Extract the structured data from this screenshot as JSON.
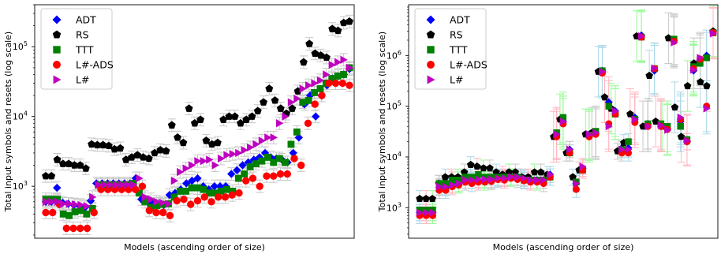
{
  "colors": {
    "ADT": "#0000ff",
    "RS": "#000000",
    "TTT": "#008000",
    "L#-ADS": "#ff0000",
    "L#": "#bf00bf",
    "errorbar_left": "#c8c8c8",
    "errorbar_right": [
      "#add8e6",
      "#ffb6c1",
      "#98fb98",
      "#c8c8c8"
    ]
  },
  "chart_data": [
    {
      "type": "scatter",
      "title": "",
      "xlabel": "Models (ascending order of size)",
      "ylabel": "Total input symbols and resets (log scale)",
      "yscale": "log",
      "ylim": [
        180,
        400000
      ],
      "yticks": [
        {
          "value": 1000,
          "base": "10",
          "exp": "3"
        },
        {
          "value": 10000,
          "base": "10",
          "exp": "4"
        },
        {
          "value": 100000,
          "base": "10",
          "exp": "5"
        }
      ],
      "grid": false,
      "legend": {
        "placement": "upper-left",
        "entries": [
          "ADT",
          "RS",
          "TTT",
          "L#-ADS",
          "L#"
        ]
      },
      "n_models": 76,
      "series": [
        {
          "name": "ADT",
          "marker": "diamond",
          "values": [
            600,
            600,
            950,
            580,
            560,
            540,
            520,
            500,
            620,
            1100,
            1100,
            1100,
            1100,
            1100,
            1100,
            1100,
            1300,
            650,
            600,
            560,
            560,
            540,
            750,
            800,
            900,
            1100,
            1200,
            1300,
            1000,
            900,
            1000,
            1000,
            1000,
            1500,
            1700,
            2000,
            2200,
            2400,
            2600,
            3000,
            2600,
            2500,
            2400,
            2200,
            3000,
            5000,
            15000,
            20000,
            10000,
            20000,
            28000,
            35000,
            38000,
            40000,
            48000
          ]
        },
        {
          "name": "RS",
          "marker": "pentagon",
          "values": [
            1400,
            1400,
            2400,
            2100,
            2100,
            2000,
            2000,
            1800,
            4000,
            3900,
            3900,
            3800,
            3400,
            3500,
            2400,
            2600,
            2800,
            2600,
            2500,
            3000,
            3300,
            3200,
            7500,
            5000,
            4200,
            13000,
            8000,
            9000,
            4500,
            4000,
            4200,
            9000,
            10000,
            10000,
            8000,
            9000,
            10000,
            12000,
            16000,
            25000,
            17000,
            13000,
            11000,
            13000,
            23000,
            60000,
            110000,
            80000,
            75000,
            70000,
            180000,
            170000,
            220000,
            230000
          ]
        },
        {
          "name": "TTT",
          "marker": "square",
          "values": [
            650,
            650,
            650,
            400,
            380,
            430,
            450,
            400,
            480,
            1050,
            1050,
            1050,
            1050,
            1050,
            1050,
            1100,
            800,
            600,
            500,
            530,
            550,
            560,
            700,
            850,
            850,
            950,
            950,
            900,
            800,
            800,
            850,
            900,
            850,
            1300,
            1500,
            1900,
            2100,
            2300,
            2600,
            2200,
            2500,
            2200,
            4000,
            6000,
            16000,
            17000,
            22000,
            25000,
            30000,
            35000,
            38000,
            40000,
            50000
          ]
        },
        {
          "name": "L#-ADS",
          "marker": "circle",
          "values": [
            420,
            420,
            550,
            250,
            250,
            250,
            250,
            420,
            900,
            900,
            900,
            900,
            900,
            900,
            1000,
            450,
            420,
            420,
            380,
            620,
            650,
            550,
            620,
            700,
            600,
            700,
            700,
            750,
            800,
            1200,
            1300,
            1000,
            1400,
            1400,
            1500,
            1500,
            2500,
            2000,
            8000,
            15000,
            20000,
            30000,
            30000,
            30000,
            28000
          ]
        },
        {
          "name": "L#",
          "marker": "triangle",
          "values": [
            600,
            600,
            600,
            560,
            560,
            550,
            540,
            520,
            700,
            1050,
            1050,
            1050,
            1050,
            1050,
            1050,
            1050,
            1300,
            700,
            650,
            600,
            580,
            560,
            1200,
            1600,
            1800,
            2000,
            2300,
            2300,
            2400,
            2000,
            2500,
            2800,
            2900,
            3000,
            3300,
            3600,
            4000,
            4500,
            5000,
            5000,
            8000,
            10000,
            16000,
            18000,
            25000,
            28000,
            30000,
            33000,
            40000,
            55000,
            60000,
            65000,
            50000
          ]
        }
      ]
    },
    {
      "type": "scatter",
      "title": "",
      "xlabel": "Models (ascending order of size)",
      "ylabel": "Total input symbols and resets (log scale)",
      "yscale": "log",
      "ylim": [
        250,
        10000000
      ],
      "yticks": [
        {
          "value": 1000,
          "base": "10",
          "exp": "3"
        },
        {
          "value": 10000,
          "base": "10",
          "exp": "4"
        },
        {
          "value": 100000,
          "base": "10",
          "exp": "5"
        },
        {
          "value": 1000000,
          "base": "10",
          "exp": "6"
        }
      ],
      "grid": false,
      "legend": {
        "placement": "upper-left",
        "entries": [
          "ADT",
          "RS",
          "TTT",
          "L#-ADS",
          "L#"
        ]
      },
      "n_models": 60,
      "series": [
        {
          "name": "ADT",
          "marker": "diamond",
          "values": [
            800,
            800,
            800,
            2500,
            2500,
            2800,
            3000,
            3500,
            3500,
            3500,
            3500,
            3500,
            3800,
            3800,
            4000,
            4000,
            3800,
            3500,
            3500,
            3500,
            4500,
            28000,
            50000,
            14000,
            3000,
            6000,
            28000,
            30000,
            500000,
            120000,
            80000,
            15000,
            15000,
            60000,
            2500000,
            45000,
            500000,
            40000,
            35000,
            2000000,
            50000,
            20000,
            500000,
            800000,
            1000000,
            3000000
          ]
        },
        {
          "name": "RS",
          "marker": "pentagon",
          "values": [
            1500,
            1500,
            1500,
            3000,
            4000,
            4000,
            4000,
            5000,
            7000,
            6500,
            6000,
            6000,
            5000,
            4500,
            5000,
            5000,
            4000,
            4000,
            5000,
            5000,
            4500,
            25000,
            55000,
            12000,
            4000,
            5500,
            28000,
            30000,
            480000,
            150000,
            90000,
            13000,
            19000,
            70000,
            2400000,
            40000,
            400000,
            50000,
            40000,
            2200000,
            95000,
            25000,
            250000,
            700000,
            300000,
            250000,
            3000000
          ]
        },
        {
          "name": "TTT",
          "marker": "square",
          "values": [
            900,
            900,
            900,
            3000,
            3000,
            3500,
            3500,
            4000,
            4000,
            4500,
            4000,
            4000,
            4000,
            4000,
            4000,
            4000,
            3500,
            3500,
            3500,
            3500,
            4000,
            30000,
            60000,
            12000,
            3200,
            5500,
            27000,
            32000,
            500000,
            100000,
            70000,
            14000,
            20000,
            55000,
            2300000,
            45000,
            550000,
            45000,
            40000,
            2100000,
            40000,
            22000,
            600000,
            700000,
            900000,
            2800000
          ]
        },
        {
          "name": "L#-ADS",
          "marker": "circle",
          "values": [
            700,
            700,
            700,
            2200,
            2200,
            2600,
            2800,
            3200,
            3000,
            3200,
            3200,
            3300,
            3600,
            3500,
            3800,
            3600,
            3400,
            3200,
            3200,
            3000,
            4000,
            25000,
            45000,
            12000,
            2300,
            5500,
            25000,
            28000,
            450000,
            45000,
            70000,
            12000,
            12000,
            48000,
            2300000,
            40000,
            550000,
            40000,
            35000,
            1900000,
            55000,
            20000,
            550000,
            850000,
            100000,
            2800000
          ]
        },
        {
          "name": "L#",
          "marker": "triangle",
          "values": [
            800,
            800,
            800,
            2600,
            2600,
            2800,
            3000,
            3500,
            3500,
            3600,
            3600,
            3600,
            3800,
            3800,
            4000,
            4000,
            3800,
            3500,
            3500,
            3500,
            4500,
            28000,
            50000,
            14000,
            3000,
            6500,
            28000,
            30000,
            480000,
            40000,
            80000,
            14000,
            14000,
            55000,
            2400000,
            40000,
            560000,
            42000,
            34000,
            1800000,
            60000,
            21000,
            520000,
            900000,
            90000,
            2700000
          ]
        }
      ]
    }
  ]
}
